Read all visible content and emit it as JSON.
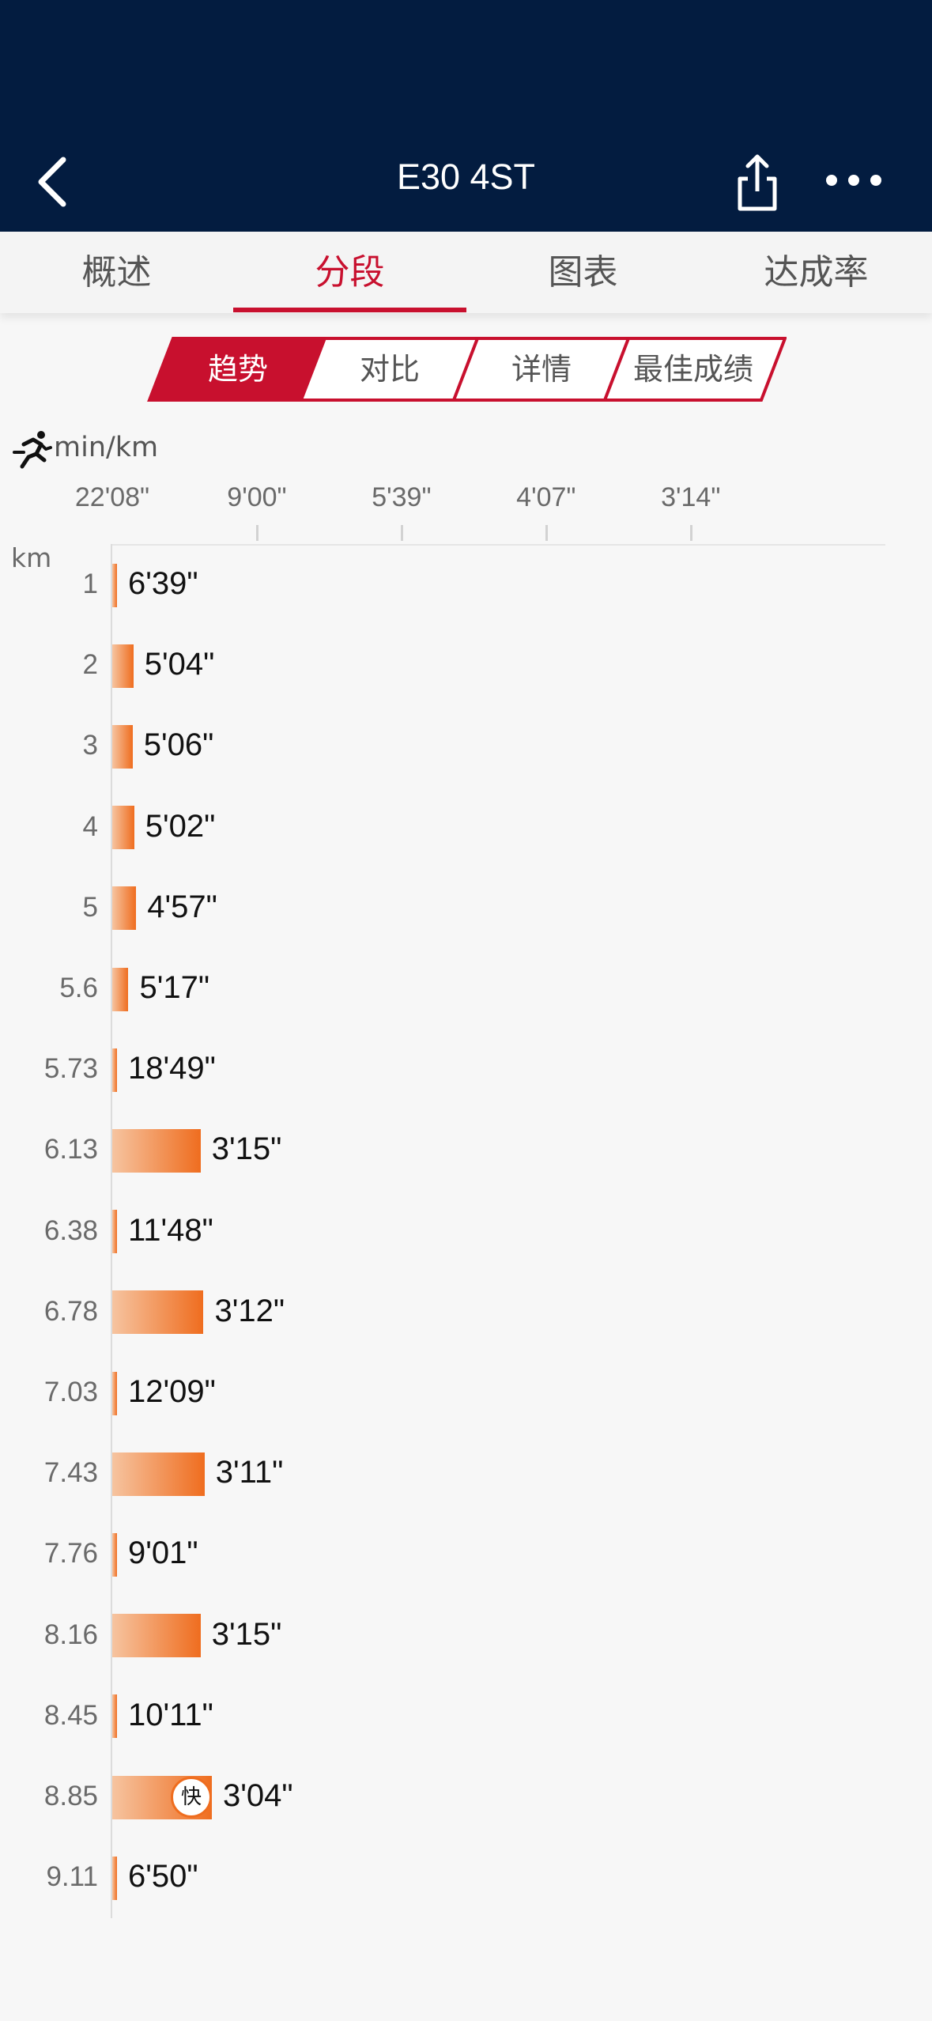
{
  "header": {
    "title": "E30 4ST"
  },
  "tabs": [
    {
      "label": "概述",
      "active": false
    },
    {
      "label": "分段",
      "active": true
    },
    {
      "label": "图表",
      "active": false
    },
    {
      "label": "达成率",
      "active": false
    }
  ],
  "segments": [
    {
      "label": "趋势",
      "active": true
    },
    {
      "label": "对比",
      "active": false
    },
    {
      "label": "详情",
      "active": false
    },
    {
      "label": "最佳成绩",
      "active": false
    }
  ],
  "colors": {
    "header_bg": "#031c40",
    "accent": "#c8102e",
    "bar_start": "#f6c4a0",
    "bar_end": "#ef6d1f"
  },
  "chart_data": {
    "type": "bar",
    "orientation": "horizontal",
    "unit_label": "min/km",
    "category_axis_label": "km",
    "x_ticks": [
      "22'08\"",
      "9'00\"",
      "5'39\"",
      "4'07\"",
      "3'14\""
    ],
    "x_tick_speeds_km_per_min": [
      0.0452,
      0.1111,
      0.177,
      0.2429,
      0.3088
    ],
    "categories": [
      "1",
      "2",
      "3",
      "4",
      "5",
      "5.6",
      "5.73",
      "6.13",
      "6.38",
      "6.78",
      "7.03",
      "7.43",
      "7.76",
      "8.16",
      "8.45",
      "8.85",
      "9.11"
    ],
    "value_labels": [
      "6'39\"",
      "5'04\"",
      "5'06\"",
      "5'02\"",
      "4'57\"",
      "5'17\"",
      "18'49\"",
      "3'15\"",
      "11'48\"",
      "3'12\"",
      "12'09\"",
      "3'11\"",
      "9'01\"",
      "3'15\"",
      "10'11\"",
      "3'04\"",
      "6'50\""
    ],
    "values_seconds_per_km": [
      399,
      304,
      306,
      302,
      297,
      317,
      1129,
      195,
      708,
      192,
      729,
      191,
      541,
      195,
      611,
      184,
      410
    ],
    "fastest_index": 15,
    "fastest_badge": "快"
  }
}
